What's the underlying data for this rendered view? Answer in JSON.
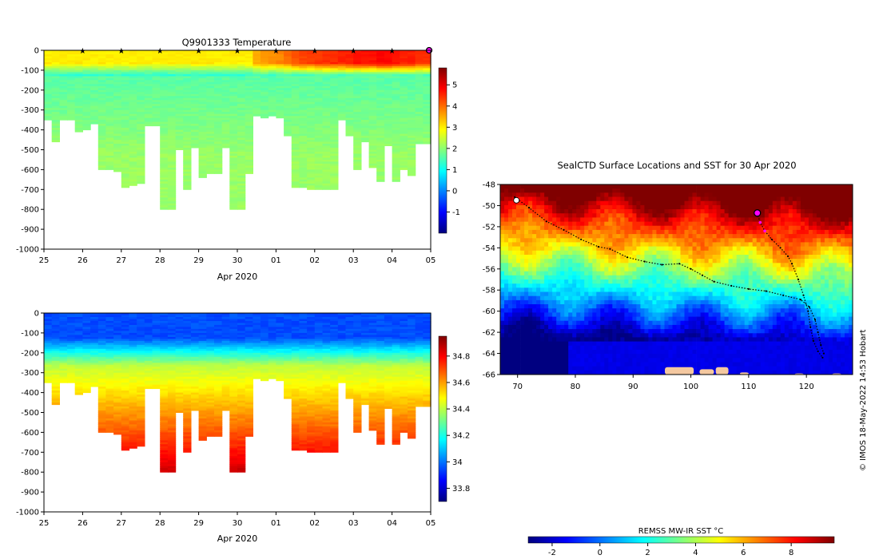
{
  "chart_data": [
    {
      "type": "heatmap",
      "title": "Q9901333  Temperature",
      "xlabel": "Apr 2020",
      "ylabel": "",
      "x_ticks": [
        "25",
        "26",
        "27",
        "28",
        "29",
        "30",
        "01",
        "02",
        "03",
        "04",
        "05"
      ],
      "xlim": [
        25,
        35
      ],
      "ylim": [
        -1000,
        0
      ],
      "y_ticks": [
        0,
        -100,
        -200,
        -300,
        -400,
        -500,
        -600,
        -700,
        -800,
        -900,
        -1000
      ],
      "colorbar_range": [
        -2,
        5.8
      ],
      "colorbar_ticks": [
        -1,
        0,
        1,
        2,
        3,
        4,
        5
      ],
      "colors": [
        "#00007f",
        "#0000ff",
        "#007fff",
        "#00ffff",
        "#7fff7f",
        "#ffff00",
        "#ff7f00",
        "#ff0000",
        "#7f0000"
      ],
      "marker_color": "#ff00ff",
      "surface_markers_day": [
        26,
        27,
        28,
        29,
        30,
        31,
        32,
        33,
        34
      ],
      "last_marker_day": 35,
      "profile_days": [
        25.0,
        25.2,
        25.4,
        25.6,
        25.8,
        26.0,
        26.2,
        26.4,
        26.6,
        26.8,
        27.0,
        27.2,
        27.4,
        27.6,
        27.8,
        28.0,
        28.2,
        28.4,
        28.6,
        28.8,
        29.0,
        29.2,
        29.4,
        29.6,
        29.8,
        30.0,
        30.2,
        30.4,
        30.6,
        30.8,
        31.0,
        31.2,
        31.4,
        31.6,
        31.8,
        32.0,
        32.2,
        32.4,
        32.6,
        32.8,
        33.0,
        33.2,
        33.4,
        33.6,
        33.8,
        34.0,
        34.2,
        34.4,
        34.6,
        34.8
      ],
      "profile_max_depth": [
        350,
        460,
        350,
        350,
        410,
        400,
        370,
        600,
        600,
        610,
        690,
        680,
        670,
        380,
        380,
        800,
        800,
        500,
        700,
        490,
        640,
        620,
        620,
        490,
        800,
        800,
        620,
        330,
        340,
        330,
        340,
        430,
        690,
        690,
        700,
        700,
        700,
        700,
        350,
        430,
        600,
        460,
        590,
        660,
        480,
        660,
        600,
        630,
        470,
        470
      ],
      "surface_temp": [
        3.0,
        3.0,
        3.0,
        3.0,
        3.0,
        3.0,
        3.0,
        3.0,
        3.0,
        3.0,
        3.0,
        3.0,
        3.0,
        3.0,
        3.0,
        3.0,
        3.0,
        3.0,
        3.0,
        3.0,
        3.0,
        3.0,
        3.0,
        3.0,
        3.0,
        3.0,
        3.0,
        3.5,
        3.7,
        3.7,
        3.8,
        4.0,
        4.2,
        4.3,
        4.4,
        4.4,
        4.5,
        4.5,
        4.6,
        4.6,
        4.7,
        4.7,
        4.7,
        4.8,
        4.8,
        4.7,
        4.6,
        4.6,
        4.5,
        4.5
      ]
    },
    {
      "type": "heatmap",
      "title": "",
      "xlabel": "Apr 2020",
      "ylabel": "",
      "x_ticks": [
        "25",
        "26",
        "27",
        "28",
        "29",
        "30",
        "01",
        "02",
        "03",
        "04",
        "05"
      ],
      "xlim": [
        25,
        35
      ],
      "ylim": [
        -1000,
        0
      ],
      "y_ticks": [
        0,
        -100,
        -200,
        -300,
        -400,
        -500,
        -600,
        -700,
        -800,
        -900,
        -1000
      ],
      "colorbar_range": [
        33.7,
        34.95
      ],
      "colorbar_ticks": [
        33.8,
        34,
        34.2,
        34.4,
        34.6,
        34.8
      ],
      "colorbar_tick_labels": [
        "33.8",
        "34",
        "34.2",
        "34.4",
        "34.6",
        "34.8"
      ],
      "colors": [
        "#00007f",
        "#0000ff",
        "#007fff",
        "#00ffff",
        "#7fff7f",
        "#ffff00",
        "#ff7f00",
        "#ff0000",
        "#7f0000"
      ]
    },
    {
      "type": "heatmap",
      "title": "SealCTD Surface Locations and SST for 30 Apr 2020",
      "xlabel": "",
      "ylabel": "",
      "xlim": [
        67,
        128
      ],
      "ylim": [
        -66,
        -48
      ],
      "x_ticks": [
        70,
        80,
        90,
        100,
        110,
        120
      ],
      "y_ticks": [
        -48,
        -50,
        -52,
        -54,
        -56,
        -58,
        -60,
        -62,
        -64,
        -66
      ],
      "colorbar_label": "REMSS MW-IR SST °C",
      "colorbar_range": [
        -3,
        9.8
      ],
      "colorbar_ticks": [
        -2,
        0,
        2,
        4,
        6,
        8
      ],
      "credit": "© IMOS 18-May-2022 14:53 Hobart",
      "colors": [
        "#00007f",
        "#0000ff",
        "#007fff",
        "#00ffff",
        "#7fff7f",
        "#ffff00",
        "#ff7f00",
        "#ff0000",
        "#7f0000"
      ],
      "land_color": "#f4c8a0",
      "track_color": "#000000",
      "highlight_color": "#ff00ff",
      "current_position": [
        111.5,
        -50.7
      ],
      "track_a": [
        [
          69.5,
          -49.2
        ],
        [
          72,
          -50.2
        ],
        [
          75,
          -51.5
        ],
        [
          78,
          -52.3
        ],
        [
          81,
          -53.2
        ],
        [
          84,
          -53.9
        ],
        [
          86,
          -54.1
        ],
        [
          89,
          -54.9
        ],
        [
          92,
          -55.3
        ],
        [
          95,
          -55.6
        ],
        [
          98,
          -55.5
        ],
        [
          100,
          -56
        ],
        [
          102,
          -56.6
        ],
        [
          104,
          -57.2
        ],
        [
          107,
          -57.6
        ],
        [
          110,
          -57.9
        ],
        [
          113,
          -58.1
        ],
        [
          116,
          -58.5
        ],
        [
          119,
          -58.9
        ],
        [
          120.5,
          -59.6
        ],
        [
          121.5,
          -60.8
        ],
        [
          122,
          -62
        ],
        [
          122.5,
          -63.2
        ],
        [
          123,
          -64
        ]
      ],
      "track_b": [
        [
          111.5,
          -50.7
        ],
        [
          112,
          -51.6
        ],
        [
          112.8,
          -52.4
        ],
        [
          114,
          -53.2
        ],
        [
          115.5,
          -54
        ],
        [
          116.8,
          -54.8
        ],
        [
          117.5,
          -55.5
        ],
        [
          118.6,
          -57
        ],
        [
          119.5,
          -58.5
        ],
        [
          120.3,
          -60
        ],
        [
          120.7,
          -61.5
        ],
        [
          121.2,
          -62.8
        ],
        [
          122,
          -63.8
        ],
        [
          122.8,
          -64.4
        ]
      ],
      "land_patches": [
        [
          95.5,
          -65.3,
          100.5,
          -66
        ],
        [
          101.5,
          -65.5,
          104,
          -66
        ],
        [
          104.3,
          -65.3,
          106.5,
          -66
        ],
        [
          108.5,
          -65.8,
          110,
          -66
        ],
        [
          118,
          -65.9,
          119.5,
          -66
        ],
        [
          124.5,
          -65.9,
          126,
          -66
        ]
      ]
    }
  ]
}
